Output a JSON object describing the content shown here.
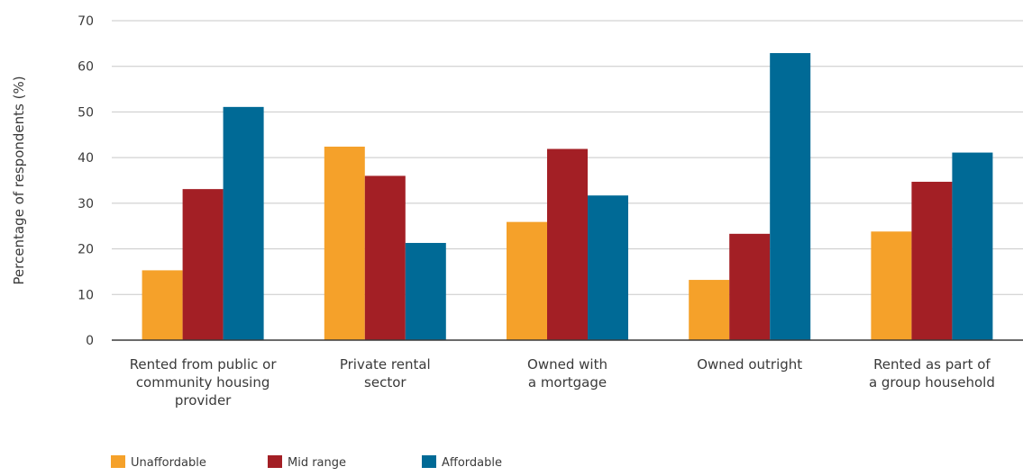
{
  "chart_data": {
    "type": "bar",
    "title": "",
    "xlabel": "",
    "ylabel": "Percentage of respondents (%)",
    "ylim": [
      0,
      70
    ],
    "yticks": [
      0,
      10,
      20,
      30,
      40,
      50,
      60,
      70
    ],
    "grid": true,
    "legend_position": "bottom-left",
    "categories": [
      [
        "Rented from public or",
        "community housing",
        "provider"
      ],
      [
        "Private rental",
        "sector"
      ],
      [
        "Owned with",
        "a mortgage"
      ],
      [
        "Owned outright"
      ],
      [
        "Rented as part of",
        "a group household"
      ]
    ],
    "series": [
      {
        "name": "Unaffordable",
        "color": "#f5a12a",
        "values": [
          15.3,
          42.4,
          25.9,
          13.2,
          23.8
        ]
      },
      {
        "name": "Mid range",
        "color": "#a31f25",
        "values": [
          33.1,
          36.0,
          41.9,
          23.3,
          34.7
        ]
      },
      {
        "name": "Affordable",
        "color": "#006a96",
        "values": [
          51.1,
          21.3,
          31.7,
          62.9,
          41.1
        ]
      }
    ]
  }
}
